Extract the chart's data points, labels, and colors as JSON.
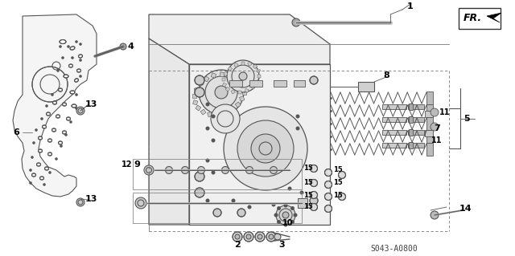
{
  "bg_color": "#ffffff",
  "line_color": "#555555",
  "part_number_code": "S043-A0800",
  "fr_label": "FR.",
  "figsize": [
    6.4,
    3.19
  ],
  "dpi": 100
}
